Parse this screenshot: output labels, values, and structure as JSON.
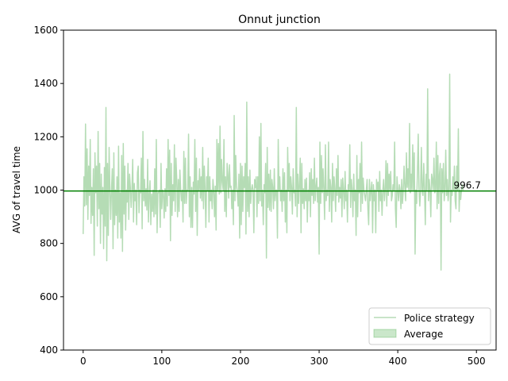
{
  "chart_data": {
    "type": "line",
    "title": "Onnut junction",
    "xlabel": "",
    "ylabel": "AVG of travel time",
    "xlim": [
      -25,
      525
    ],
    "ylim": [
      400,
      1600
    ],
    "xticks": [
      0,
      100,
      200,
      300,
      400,
      500
    ],
    "yticks": [
      400,
      600,
      800,
      1000,
      1200,
      1400,
      1600
    ],
    "grid": false,
    "legend_position": "lower-right",
    "series": [
      {
        "name": "Police strategy",
        "color": "#b5dcb5",
        "x_start": 0,
        "x_step": 1,
        "values": [
          835,
          1050,
          940,
          1248,
          945,
          1155,
          890,
          1090,
          980,
          1190,
          875,
          1010,
          905,
          1080,
          755,
          1140,
          990,
          1090,
          865,
          1220,
          930,
          1100,
          800,
          1060,
          910,
          1010,
          780,
          1085,
          865,
          1310,
          735,
          1100,
          830,
          1160,
          1005,
          890,
          1000,
          1080,
          780,
          1140,
          870,
          1000,
          905,
          1050,
          820,
          1165,
          880,
          990,
          820,
          1130,
          770,
          1175,
          910,
          1090,
          850,
          1000,
          955,
          1100,
          890,
          1060,
          1010,
          935,
          1000,
          1115,
          880,
          1025,
          960,
          1000,
          870,
          1065,
          1090,
          915,
          1000,
          990,
          1120,
          855,
          1220,
          960,
          1040,
          940,
          1005,
          925,
          1115,
          880,
          980,
          1035,
          870,
          985,
          920,
          1000,
          900,
          1080,
          910,
          1190,
          840,
          990,
          990,
          1000,
          860,
          1100,
          930,
          1000,
          990,
          895,
          1005,
          920,
          1080,
          940,
          1190,
          980,
          1150,
          810,
          1100,
          905,
          1020,
          960,
          1170,
          920,
          1120,
          1040,
          900,
          1040,
          920,
          1075,
          1000,
          960,
          1000,
          880,
          1145,
          950,
          1120,
          950,
          1000,
          1000,
          1210,
          900,
          1050,
          860,
          1010,
          860,
          1030,
          985,
          1190,
          920,
          1120,
          830,
          1035,
          1000,
          1080,
          970,
          1050,
          960,
          1160,
          930,
          1090,
          1005,
          860,
          1050,
          1000,
          1120,
          880,
          1050,
          960,
          1000,
          930,
          1040,
          1000,
          900,
          1015,
          850,
          1190,
          1000,
          1175,
          985,
          1240,
          990,
          1115,
          1030,
          1000,
          1190,
          920,
          1050,
          900,
          1100,
          1060,
          970,
          1095,
          1010,
          1015,
          930,
          1000,
          870,
          1280,
          960,
          1130,
          1015,
          990,
          940,
          1060,
          820,
          1100,
          870,
          1090,
          920,
          1050,
          1010,
          1100,
          835,
          1330,
          920,
          1050,
          900,
          1075,
          950,
          1000,
          1020,
          1000,
          840,
          1040,
          1010,
          1050,
          900,
          1050,
          950,
          1200,
          960,
          1250,
          940,
          1000,
          870,
          1020,
          990,
          1100,
          745,
          1160,
          935,
          1060,
          925,
          1075,
          920,
          1040,
          1010,
          930,
          1080,
          960,
          1000,
          1000,
          820,
          1190,
          1000,
          1050,
          960,
          1000,
          920,
          1080,
          960,
          1065,
          880,
          1000,
          840,
          1160,
          1000,
          1100,
          960,
          1050,
          1010,
          910,
          1080,
          990,
          1000,
          940,
          1310,
          900,
          1060,
          950,
          1020,
          1120,
          840,
          1100,
          950,
          1005,
          930,
          1040,
          960,
          1045,
          880,
          1000,
          960,
          1065,
          900,
          1080,
          980,
          1040,
          950,
          1120,
          960,
          1010,
          1045,
          955,
          1010,
          760,
          1180,
          950,
          1130,
          990,
          1080,
          1000,
          890,
          1170,
          960,
          1000,
          980,
          1180,
          920,
          1040,
          1010,
          880,
          1100,
          960,
          1050,
          1000,
          920,
          1080,
          980,
          1130,
          955,
          1010,
          970,
          1040,
          900,
          1045,
          1000,
          930,
          1070,
          960,
          1000,
          880,
          1020,
          1000,
          1170,
          935,
          1040,
          1000,
          900,
          1060,
          960,
          1000,
          830,
          1130,
          900,
          1040,
          990,
          1100,
          920,
          1180,
          950,
          1045,
          1000,
          980,
          960,
          1000,
          1040,
          930,
          870,
          1040,
          960,
          1000,
          1030,
          840,
          1020,
          960,
          1000,
          840,
          1040,
          1000,
          1030,
          920,
          1070,
          960,
          1000,
          905,
          1000,
          1040,
          960,
          1000,
          1110,
          940,
          1100,
          980,
          1060,
          1000,
          1070,
          960,
          980,
          1020,
          1000,
          1180,
          930,
          860,
          1050,
          1000,
          960,
          1020,
          1000,
          930,
          1040,
          950,
          1000,
          1090,
          1010,
          960,
          1140,
          1010,
          1080,
          1000,
          1250,
          990,
          1060,
          1000,
          1170,
          1000,
          1140,
          760,
          1000,
          950,
          1070,
          1210,
          1000,
          940,
          1000,
          1160,
          1000,
          980,
          1100,
          1000,
          870,
          1060,
          1000,
          1380,
          960,
          1040,
          1000,
          900,
          1060,
          1040,
          1000,
          1120,
          990,
          1000,
          1180,
          930,
          1130,
          950,
          1060,
          1100,
          700,
          1080,
          990,
          1100,
          960,
          1000,
          1150,
          980,
          1040,
          960,
          1000,
          1435,
          880,
          1000,
          980,
          1050,
          1000,
          1090,
          960,
          930,
          1090,
          1000,
          1230,
          920,
          1000,
          965,
          1000,
          1020,
          1000
        ]
      }
    ],
    "average": {
      "name": "Average",
      "value": 996.7,
      "label": "996.7",
      "color": "#008000"
    }
  }
}
